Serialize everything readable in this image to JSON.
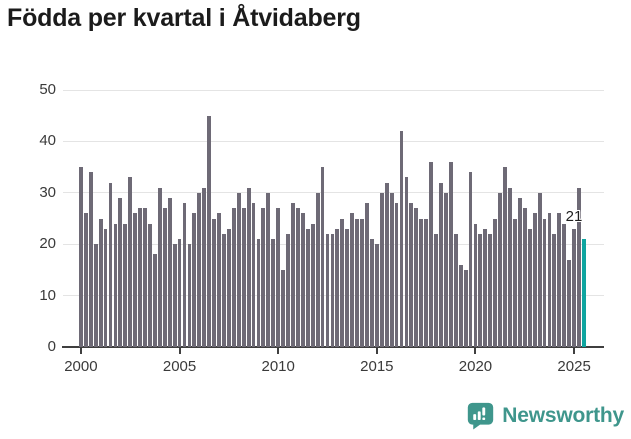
{
  "title": "Födda per kvartal i Åtvidaberg",
  "footer": {
    "brand": "Newsworthy"
  },
  "colors": {
    "bar": "#6e6a76",
    "highlight": "#0fa5a0",
    "grid": "#e4e4e4",
    "axis": "#3f3f3f",
    "title_text": "#1b1b1b",
    "brand_teal": "#3f968c"
  },
  "chart_data": {
    "type": "bar",
    "title": "Födda per kvartal i Åtvidaberg",
    "x_start": "2000Q1",
    "x_end": "2025Q3",
    "frequency": "quarterly",
    "series_by_year": [
      {
        "year": 2000,
        "q": [
          35,
          26,
          34,
          20
        ]
      },
      {
        "year": 2001,
        "q": [
          25,
          23,
          32,
          24
        ]
      },
      {
        "year": 2002,
        "q": [
          29,
          24,
          33,
          26
        ]
      },
      {
        "year": 2003,
        "q": [
          27,
          27,
          24,
          18
        ]
      },
      {
        "year": 2004,
        "q": [
          31,
          27,
          29,
          20
        ]
      },
      {
        "year": 2005,
        "q": [
          21,
          28,
          20,
          26
        ]
      },
      {
        "year": 2006,
        "q": [
          30,
          31,
          45,
          25
        ]
      },
      {
        "year": 2007,
        "q": [
          26,
          22,
          23,
          27
        ]
      },
      {
        "year": 2008,
        "q": [
          30,
          27,
          31,
          28
        ]
      },
      {
        "year": 2009,
        "q": [
          21,
          27,
          30,
          21
        ]
      },
      {
        "year": 2010,
        "q": [
          27,
          15,
          22,
          28
        ]
      },
      {
        "year": 2011,
        "q": [
          27,
          26,
          23,
          24
        ]
      },
      {
        "year": 2012,
        "q": [
          30,
          35,
          22,
          22
        ]
      },
      {
        "year": 2013,
        "q": [
          23,
          25,
          23,
          26
        ]
      },
      {
        "year": 2014,
        "q": [
          25,
          25,
          28,
          21
        ]
      },
      {
        "year": 2015,
        "q": [
          20,
          30,
          32,
          30
        ]
      },
      {
        "year": 2016,
        "q": [
          28,
          42,
          33,
          28
        ]
      },
      {
        "year": 2017,
        "q": [
          27,
          25,
          25,
          36
        ]
      },
      {
        "year": 2018,
        "q": [
          22,
          32,
          30,
          36
        ]
      },
      {
        "year": 2019,
        "q": [
          22,
          16,
          15,
          34
        ]
      },
      {
        "year": 2020,
        "q": [
          24,
          22,
          23,
          22
        ]
      },
      {
        "year": 2021,
        "q": [
          25,
          30,
          35,
          31
        ]
      },
      {
        "year": 2022,
        "q": [
          25,
          29,
          27,
          23
        ]
      },
      {
        "year": 2023,
        "q": [
          26,
          30,
          25,
          26
        ]
      },
      {
        "year": 2024,
        "q": [
          22,
          26,
          24,
          17
        ]
      },
      {
        "year": 2025,
        "q": [
          23,
          31,
          21
        ]
      }
    ],
    "highlight_last": true,
    "highlight_label": "21",
    "ylim": [
      0,
      50
    ],
    "yticks": [
      0,
      10,
      20,
      30,
      40,
      50
    ],
    "xticks": [
      {
        "label": "2000",
        "quarter_index": 0
      },
      {
        "label": "2005",
        "quarter_index": 20
      },
      {
        "label": "2010",
        "quarter_index": 40
      },
      {
        "label": "2015",
        "quarter_index": 60
      },
      {
        "label": "2020",
        "quarter_index": 80
      },
      {
        "label": "2025",
        "quarter_index": 100
      }
    ],
    "grid": true,
    "legend": false
  }
}
